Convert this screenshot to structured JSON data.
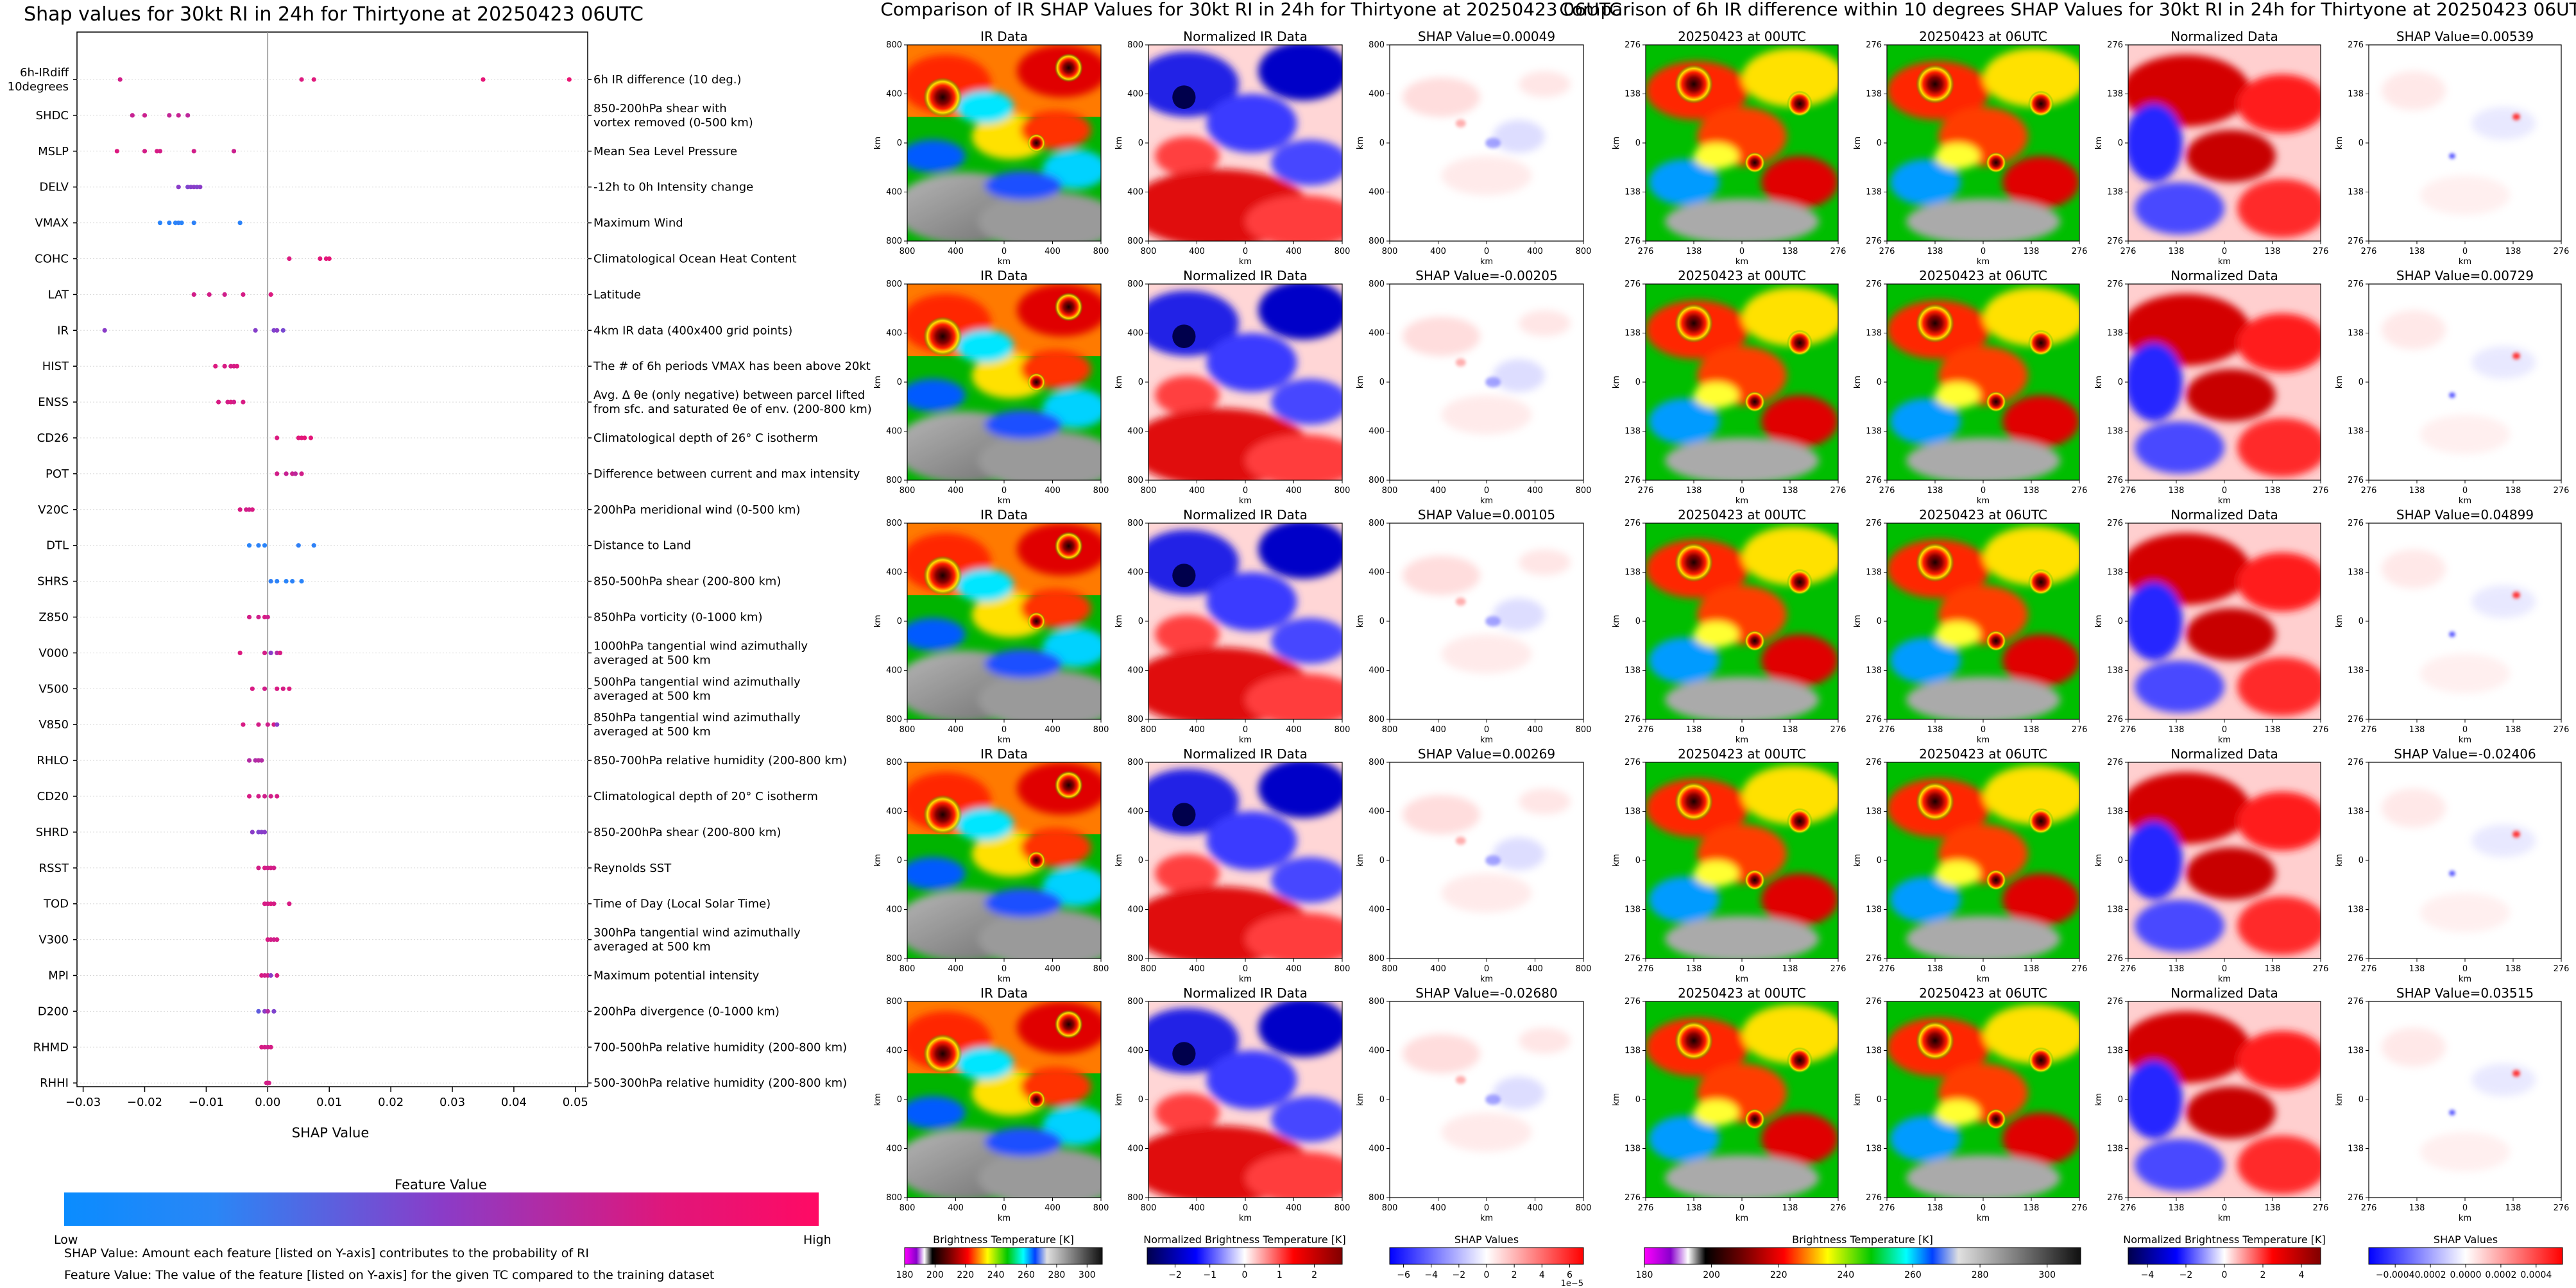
{
  "colors": {
    "low": "#1e8cff",
    "mid": "#8a3cc8",
    "high": "#f0116e",
    "shap_neg": "#0000c8",
    "shap_pos": "#d4001e"
  },
  "shap_panel": {
    "title": "Shap values for 30kt RI in 24h for Thirtyone at 20250423 06UTC",
    "xlabel": "SHAP Value",
    "x_ticks": [
      "−0.03",
      "−0.02",
      "−0.01",
      "0.00",
      "0.01",
      "0.02",
      "0.03",
      "0.04",
      "0.05"
    ],
    "colorbar": {
      "title": "Feature Value",
      "low_label": "Low",
      "high_label": "High"
    },
    "notes": [
      "SHAP Value: Amount each feature [listed on Y-axis] contributes to the probability of RI",
      "Feature Value: The value of the feature [listed on Y-axis] for the given TC compared to the training dataset"
    ]
  },
  "chart_data": [
    {
      "type": "scatter",
      "title": "Shap values for 30kt RI in 24h for Thirtyone at 20250423 06UTC",
      "xlabel": "SHAP Value",
      "xlim": [
        -0.031,
        0.052
      ],
      "grid": false,
      "features": [
        {
          "name": "6h-IRdiff\n10degrees",
          "desc": "6h IR difference (10 deg.)",
          "points": [
            [
              -0.024,
              0.85
            ],
            [
              0.0055,
              0.9
            ],
            [
              0.0075,
              0.92
            ],
            [
              0.035,
              0.95
            ],
            [
              0.049,
              0.97
            ]
          ]
        },
        {
          "name": "SHDC",
          "desc": "850-200hPa shear with\nvortex removed (0-500 km)",
          "points": [
            [
              -0.022,
              0.8
            ],
            [
              -0.02,
              0.82
            ],
            [
              -0.016,
              0.78
            ],
            [
              -0.0145,
              0.8
            ],
            [
              -0.013,
              0.75
            ]
          ]
        },
        {
          "name": "MSLP",
          "desc": "Mean Sea Level Pressure",
          "points": [
            [
              -0.0245,
              0.9
            ],
            [
              -0.02,
              0.86
            ],
            [
              -0.018,
              0.88
            ],
            [
              -0.0175,
              0.86
            ],
            [
              -0.012,
              0.85
            ],
            [
              -0.0055,
              0.82
            ]
          ]
        },
        {
          "name": "DELV",
          "desc": "-12h to 0h Intensity change",
          "points": [
            [
              -0.0145,
              0.5
            ],
            [
              -0.013,
              0.45
            ],
            [
              -0.0125,
              0.48
            ],
            [
              -0.012,
              0.5
            ],
            [
              -0.0115,
              0.46
            ],
            [
              -0.011,
              0.5
            ]
          ]
        },
        {
          "name": "VMAX",
          "desc": "Maximum Wind",
          "points": [
            [
              -0.0175,
              0.05
            ],
            [
              -0.016,
              0.06
            ],
            [
              -0.015,
              0.05
            ],
            [
              -0.0145,
              0.08
            ],
            [
              -0.014,
              0.05
            ],
            [
              -0.012,
              0.07
            ],
            [
              -0.0045,
              0.06
            ]
          ]
        },
        {
          "name": "COHC",
          "desc": "Climatological Ocean Heat Content",
          "points": [
            [
              0.0035,
              0.9
            ],
            [
              0.0085,
              0.92
            ],
            [
              0.0095,
              0.93
            ],
            [
              0.01,
              0.95
            ]
          ]
        },
        {
          "name": "LAT",
          "desc": "Latitude",
          "points": [
            [
              -0.012,
              0.85
            ],
            [
              -0.0095,
              0.86
            ],
            [
              -0.007,
              0.84
            ],
            [
              -0.004,
              0.87
            ],
            [
              0.0005,
              0.9
            ]
          ]
        },
        {
          "name": "IR",
          "desc": "4km IR data (400x400 grid points)",
          "points": [
            [
              -0.0265,
              0.5
            ],
            [
              -0.002,
              0.48
            ],
            [
              0.001,
              0.45
            ],
            [
              0.0015,
              0.5
            ],
            [
              0.0025,
              0.42
            ]
          ]
        },
        {
          "name": "HIST",
          "desc": "The # of 6h periods VMAX has been above 20kt",
          "points": [
            [
              -0.0085,
              0.9
            ],
            [
              -0.007,
              0.88
            ],
            [
              -0.006,
              0.86
            ],
            [
              -0.0055,
              0.87
            ],
            [
              -0.005,
              0.9
            ]
          ]
        },
        {
          "name": "ENSS",
          "desc": "Avg. Δ θe (only negative) between parcel lifted\nfrom sfc. and saturated θe of env. (200-800 km)",
          "points": [
            [
              -0.008,
              0.88
            ],
            [
              -0.0065,
              0.86
            ],
            [
              -0.006,
              0.9
            ],
            [
              -0.0055,
              0.85
            ],
            [
              -0.004,
              0.88
            ]
          ]
        },
        {
          "name": "CD26",
          "desc": "Climatological depth of 26° C isotherm",
          "points": [
            [
              0.0015,
              0.9
            ],
            [
              0.005,
              0.92
            ],
            [
              0.0055,
              0.93
            ],
            [
              0.006,
              0.95
            ],
            [
              0.007,
              0.94
            ]
          ]
        },
        {
          "name": "POT",
          "desc": "Difference between current and max intensity",
          "points": [
            [
              0.0015,
              0.85
            ],
            [
              0.003,
              0.8
            ],
            [
              0.004,
              0.82
            ],
            [
              0.0045,
              0.75
            ],
            [
              0.0055,
              0.85
            ]
          ]
        },
        {
          "name": "V20C",
          "desc": "200hPa meridional wind (0-500 km)",
          "points": [
            [
              -0.0045,
              0.88
            ],
            [
              -0.0035,
              0.86
            ],
            [
              -0.003,
              0.84
            ],
            [
              -0.0025,
              0.88
            ]
          ]
        },
        {
          "name": "DTL",
          "desc": "Distance to Land",
          "points": [
            [
              -0.003,
              0.05
            ],
            [
              -0.0015,
              0.06
            ],
            [
              -0.0005,
              0.05
            ],
            [
              0.005,
              0.08
            ],
            [
              0.0075,
              0.07
            ]
          ]
        },
        {
          "name": "SHRS",
          "desc": "850-500hPa shear (200-800 km)",
          "points": [
            [
              0.0005,
              0.08
            ],
            [
              0.0015,
              0.06
            ],
            [
              0.003,
              0.05
            ],
            [
              0.004,
              0.06
            ],
            [
              0.0055,
              0.05
            ]
          ]
        },
        {
          "name": "Z850",
          "desc": "850hPa vorticity (0-1000 km)",
          "points": [
            [
              -0.003,
              0.86
            ],
            [
              -0.0015,
              0.84
            ],
            [
              -0.0005,
              0.88
            ],
            [
              0.0,
              0.83
            ]
          ]
        },
        {
          "name": "V000",
          "desc": "1000hPa tangential wind azimuthally\naveraged at 500 km",
          "points": [
            [
              -0.0045,
              0.9
            ],
            [
              -0.0005,
              0.86
            ],
            [
              0.0005,
              0.5
            ],
            [
              0.0015,
              0.7
            ],
            [
              0.002,
              0.88
            ]
          ]
        },
        {
          "name": "V500",
          "desc": "500hPa tangential wind azimuthally\naveraged at 500 km",
          "points": [
            [
              -0.0025,
              0.88
            ],
            [
              -0.0005,
              0.85
            ],
            [
              0.0015,
              0.88
            ],
            [
              0.0025,
              0.87
            ],
            [
              0.0035,
              0.9
            ]
          ]
        },
        {
          "name": "V850",
          "desc": "850hPa tangential wind azimuthally\naveraged at 500 km",
          "points": [
            [
              -0.004,
              0.88
            ],
            [
              -0.0015,
              0.86
            ],
            [
              0.0,
              0.84
            ],
            [
              0.001,
              0.87
            ],
            [
              0.0015,
              0.5
            ]
          ]
        },
        {
          "name": "RHLO",
          "desc": "850-700hPa relative humidity (200-800 km)",
          "points": [
            [
              -0.003,
              0.7
            ],
            [
              -0.002,
              0.68
            ],
            [
              -0.0015,
              0.72
            ],
            [
              -0.001,
              0.7
            ]
          ]
        },
        {
          "name": "CD20",
          "desc": "Climatological depth of 20° C isotherm",
          "points": [
            [
              -0.003,
              0.88
            ],
            [
              -0.0015,
              0.86
            ],
            [
              -0.0005,
              0.84
            ],
            [
              0.0005,
              0.85
            ],
            [
              0.0015,
              0.87
            ]
          ]
        },
        {
          "name": "SHRD",
          "desc": "850-200hPa shear (200-800 km)",
          "points": [
            [
              -0.0025,
              0.5
            ],
            [
              -0.0015,
              0.45
            ],
            [
              -0.001,
              0.48
            ],
            [
              -0.0005,
              0.5
            ]
          ]
        },
        {
          "name": "RSST",
          "desc": "Reynolds SST",
          "points": [
            [
              -0.0015,
              0.86
            ],
            [
              -0.0005,
              0.88
            ],
            [
              0.0,
              0.84
            ],
            [
              0.0005,
              0.87
            ],
            [
              0.001,
              0.85
            ]
          ]
        },
        {
          "name": "TOD",
          "desc": "Time of Day (Local Solar Time)",
          "points": [
            [
              -0.0005,
              0.88
            ],
            [
              0.0,
              0.86
            ],
            [
              0.0005,
              0.9
            ],
            [
              0.001,
              0.87
            ],
            [
              0.0035,
              0.88
            ]
          ]
        },
        {
          "name": "V300",
          "desc": "300hPa tangential wind azimuthally\naveraged at 500 km",
          "points": [
            [
              0.0,
              0.88
            ],
            [
              0.0005,
              0.86
            ],
            [
              0.001,
              0.84
            ],
            [
              0.0015,
              0.87
            ]
          ]
        },
        {
          "name": "MPI",
          "desc": "Maximum potential intensity",
          "points": [
            [
              -0.001,
              0.88
            ],
            [
              -0.0005,
              0.84
            ],
            [
              0.0,
              0.86
            ],
            [
              0.0005,
              0.5
            ],
            [
              0.0015,
              0.87
            ]
          ]
        },
        {
          "name": "D200",
          "desc": "200hPa divergence (0-1000 km)",
          "points": [
            [
              -0.0015,
              0.3
            ],
            [
              -0.0005,
              0.5
            ],
            [
              0.0,
              0.7
            ],
            [
              0.001,
              0.45
            ]
          ]
        },
        {
          "name": "RHMD",
          "desc": "700-500hPa relative humidity (200-800 km)",
          "points": [
            [
              -0.001,
              0.88
            ],
            [
              -0.0005,
              0.86
            ],
            [
              0.0,
              0.84
            ],
            [
              0.0005,
              0.87
            ]
          ]
        },
        {
          "name": "RHHI",
          "desc": "500-300hPa relative humidity (200-800 km)",
          "points": [
            [
              -0.0002,
              0.85
            ],
            [
              0.0,
              0.87
            ],
            [
              0.0002,
              0.86
            ]
          ]
        }
      ]
    },
    {
      "type": "heatmap",
      "title": "Comparison of IR SHAP Values for 30kt RI in 24h for Thirtyone at 20250423 06UTC",
      "columns": [
        "IR Data",
        "Normalized IR Data",
        "SHAP Value"
      ],
      "shap_values": [
        "0.00049",
        "-0.00205",
        "0.00105",
        "0.00269",
        "-0.02680"
      ],
      "axis_ticks": [
        "800",
        "400",
        "0",
        "400",
        "800"
      ],
      "axis_unit": "km",
      "colorbars": [
        {
          "label": "Brightness Temperature [K]",
          "ticks": [
            "180",
            "200",
            "220",
            "240",
            "260",
            "280",
            "300"
          ],
          "range": [
            180,
            310
          ]
        },
        {
          "label": "Normalized Brightness Temperature [K]",
          "ticks": [
            "−2",
            "−1",
            "0",
            "1",
            "2"
          ],
          "range": [
            -2.8,
            2.8
          ]
        },
        {
          "label": "SHAP Values",
          "ticks": [
            "−6",
            "−4",
            "−2",
            "0",
            "2",
            "4",
            "6"
          ],
          "range": [
            -7,
            7
          ],
          "offset": "1e−5"
        }
      ]
    },
    {
      "type": "heatmap",
      "title": "Comparison of 6h IR difference within 10 degrees SHAP Values for 30kt RI in 24h for Thirtyone at 20250423 06UTC",
      "columns": [
        "20250423 at 00UTC",
        "20250423 at 06UTC",
        "Normalized Data",
        "SHAP Value"
      ],
      "shap_values": [
        "0.00539",
        "0.00729",
        "0.04899",
        "-0.02406",
        "0.03515"
      ],
      "axis_ticks": [
        "276",
        "138",
        "0",
        "138",
        "276"
      ],
      "axis_unit": "km",
      "colorbars": [
        {
          "label": "Brightness Temperature [K]",
          "ticks": [
            "180",
            "200",
            "220",
            "240",
            "260",
            "280",
            "300"
          ],
          "range": [
            180,
            310
          ]
        },
        {
          "label": "Normalized Brightness Temperature [K]",
          "ticks": [
            "−4",
            "−2",
            "0",
            "2",
            "4"
          ],
          "range": [
            -5,
            5
          ]
        },
        {
          "label": "SHAP Values",
          "ticks": [
            "−0.0004",
            "0.0002",
            "0.0000",
            "0.0002",
            "0.0004"
          ],
          "range": [
            -0.00055,
            0.00055
          ]
        }
      ]
    }
  ]
}
